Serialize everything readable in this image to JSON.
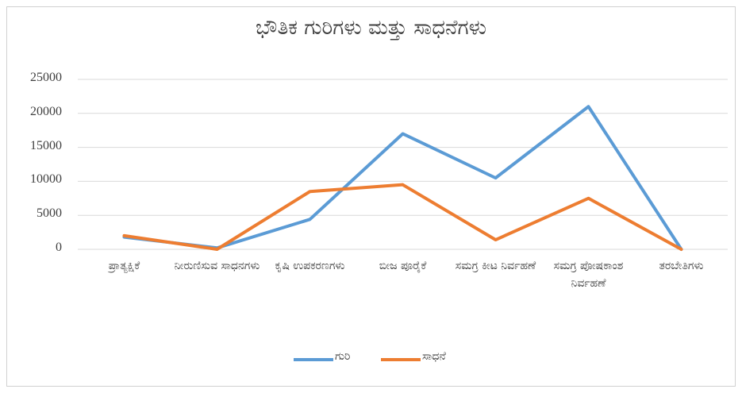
{
  "chart_data": {
    "type": "line",
    "title": "ಭೌತಿಕ ಗುರಿಗಳು ಮತ್ತು ಸಾಧನೆಗಳು",
    "categories": [
      "ಪ್ರಾತ್ಯಕ್ಷಿಕೆ",
      "ನೀರುಣಿಸುವ ಸಾಧನಗಳು",
      "ಕೃಷಿ ಉಪಕರಣಗಳು",
      "ಬೀಜ ಪೂರೈಕೆ",
      "ಸಮಗ್ರ ಕೀಟ ನಿರ್ವಹಣೆ",
      "ಸಮಗ್ರ ಪೋಷಕಾಂಶ ನಿರ್ವಹಣೆ",
      "ತರಬೇತಿಗಳು"
    ],
    "series": [
      {
        "name": "ಗುರಿ",
        "color": "#5b9bd5",
        "values": [
          1800,
          200,
          4400,
          17000,
          10500,
          21000,
          0
        ]
      },
      {
        "name": "ಸಾಧನೆ",
        "color": "#ed7d31",
        "values": [
          2000,
          0,
          8500,
          9500,
          1400,
          7500,
          0
        ]
      }
    ],
    "ylim": [
      0,
      25000
    ],
    "yticks": [
      0,
      5000,
      10000,
      15000,
      20000,
      25000
    ],
    "grid": true,
    "legend": "bottom"
  }
}
